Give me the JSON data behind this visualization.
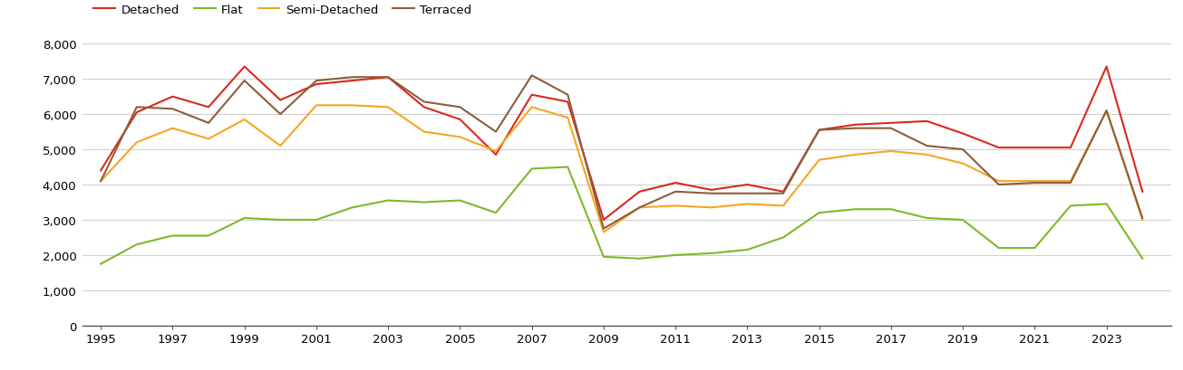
{
  "years": [
    1995,
    1996,
    1997,
    1998,
    1999,
    2000,
    2001,
    2002,
    2003,
    2004,
    2005,
    2006,
    2007,
    2008,
    2009,
    2010,
    2011,
    2012,
    2013,
    2014,
    2015,
    2016,
    2017,
    2018,
    2019,
    2020,
    2021,
    2022,
    2023,
    2024
  ],
  "detached": [
    4400,
    6050,
    6500,
    6200,
    7350,
    6400,
    6850,
    6950,
    7050,
    6200,
    5850,
    4850,
    6550,
    6350,
    3000,
    3800,
    4050,
    3850,
    4000,
    3800,
    5550,
    5700,
    5750,
    5800,
    5450,
    5050,
    5050,
    5050,
    7350,
    3800
  ],
  "flat": [
    1750,
    2300,
    2550,
    2550,
    3050,
    3000,
    3000,
    3350,
    3550,
    3500,
    3550,
    3200,
    4450,
    4500,
    1950,
    1900,
    2000,
    2050,
    2150,
    2500,
    3200,
    3300,
    3300,
    3050,
    3000,
    2200,
    2200,
    3400,
    3450,
    1900
  ],
  "semi_detached": [
    4100,
    5200,
    5600,
    5300,
    5850,
    5100,
    6250,
    6250,
    6200,
    5500,
    5350,
    4950,
    6200,
    5900,
    2650,
    3350,
    3400,
    3350,
    3450,
    3400,
    4700,
    4850,
    4950,
    4850,
    4600,
    4100,
    4100,
    4100,
    6100,
    3000
  ],
  "terraced": [
    4100,
    6200,
    6150,
    5750,
    6950,
    6000,
    6950,
    7050,
    7050,
    6350,
    6200,
    5500,
    7100,
    6550,
    2750,
    3350,
    3800,
    3750,
    3750,
    3750,
    5550,
    5600,
    5600,
    5100,
    5000,
    4000,
    4050,
    4050,
    6100,
    3050
  ],
  "colors": {
    "detached": "#d9291c",
    "flat": "#7db928",
    "semi_detached": "#f5a623",
    "terraced": "#8b5e3c"
  },
  "ylim": [
    0,
    8000
  ],
  "yticks": [
    0,
    1000,
    2000,
    3000,
    4000,
    5000,
    6000,
    7000,
    8000
  ],
  "ytick_labels": [
    "0",
    "1,000",
    "2,000",
    "3,000",
    "4,000",
    "5,000",
    "6,000",
    "7,000",
    "8,000"
  ],
  "xticks": [
    1995,
    1997,
    1999,
    2001,
    2003,
    2005,
    2007,
    2009,
    2011,
    2013,
    2015,
    2017,
    2019,
    2021,
    2023
  ],
  "legend_labels": [
    "Detached",
    "Flat",
    "Semi-Detached",
    "Terraced"
  ],
  "background_color": "#ffffff",
  "grid_color": "#d0d0d0",
  "line_width": 1.5
}
